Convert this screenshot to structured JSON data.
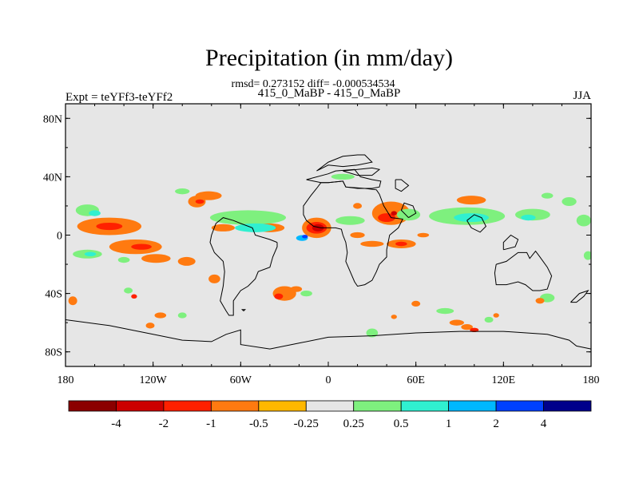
{
  "chart_data": {
    "type": "heatmap",
    "title": "Precipitation (in mm/day)",
    "subtitle": "rmsd= 0.273152 diff= -0.000534534",
    "case_label": "415_0_MaBP - 415_0_MaBP",
    "left_label": "Expt = teYFf3-teYFf2",
    "right_label": "JJA",
    "xlabel": "",
    "ylabel": "",
    "xlim": [
      -180,
      180
    ],
    "ylim": [
      -90,
      90
    ],
    "x_ticks": [
      {
        "value": -180,
        "label": "180"
      },
      {
        "value": -120,
        "label": "120W"
      },
      {
        "value": -60,
        "label": "60W"
      },
      {
        "value": 0,
        "label": "0"
      },
      {
        "value": 60,
        "label": "60E"
      },
      {
        "value": 120,
        "label": "120E"
      },
      {
        "value": 180,
        "label": "180"
      }
    ],
    "y_ticks": [
      {
        "value": 80,
        "label": "80N"
      },
      {
        "value": 40,
        "label": "40N"
      },
      {
        "value": 0,
        "label": "0"
      },
      {
        "value": -40,
        "label": "40S"
      },
      {
        "value": -80,
        "label": "80S"
      }
    ],
    "background_color": "#e6e6e6",
    "colorbar": {
      "levels": [
        "-4",
        "-2",
        "-1",
        "-0.5",
        "-0.25",
        "0.25",
        "0.5",
        "1",
        "2",
        "4"
      ],
      "colors": [
        "#8b0000",
        "#cc0000",
        "#ff2000",
        "#ff7a10",
        "#ffb800",
        "#e6e6e6",
        "#7ef07e",
        "#30f0d0",
        "#00b8ff",
        "#0040ff",
        "#00008b"
      ]
    },
    "features": [
      {
        "lon": -150,
        "lat": 6,
        "rx": 22,
        "ry": 6,
        "value": -0.5
      },
      {
        "lon": -150,
        "lat": 6,
        "rx": 9,
        "ry": 2.5,
        "value": -1
      },
      {
        "lon": -132,
        "lat": -8,
        "rx": 18,
        "ry": 5,
        "value": -0.5
      },
      {
        "lon": -128,
        "lat": -8,
        "rx": 7,
        "ry": 2,
        "value": -1
      },
      {
        "lon": -165,
        "lat": 17,
        "rx": 8,
        "ry": 4,
        "value": 0.5
      },
      {
        "lon": -160,
        "lat": 15,
        "rx": 4,
        "ry": 2,
        "value": 1
      },
      {
        "lon": -165,
        "lat": -13,
        "rx": 10,
        "ry": 3,
        "value": 0.5
      },
      {
        "lon": -163,
        "lat": -13,
        "rx": 4,
        "ry": 1.5,
        "value": 1
      },
      {
        "lon": -118,
        "lat": -16,
        "rx": 10,
        "ry": 3,
        "value": -0.5
      },
      {
        "lon": -97,
        "lat": -18,
        "rx": 6,
        "ry": 3,
        "value": -0.5
      },
      {
        "lon": -78,
        "lat": -30,
        "rx": 4,
        "ry": 3,
        "value": -0.5
      },
      {
        "lon": -90,
        "lat": 23,
        "rx": 6,
        "ry": 4,
        "value": -0.5
      },
      {
        "lon": -88,
        "lat": 23,
        "rx": 3,
        "ry": 1.5,
        "value": -1
      },
      {
        "lon": -82,
        "lat": 27,
        "rx": 9,
        "ry": 3,
        "value": -0.5
      },
      {
        "lon": -100,
        "lat": 30,
        "rx": 5,
        "ry": 2,
        "value": 0.5
      },
      {
        "lon": -70,
        "lat": 13,
        "rx": 5,
        "ry": 2,
        "value": 0.5
      },
      {
        "lon": -65,
        "lat": 12,
        "rx": 3,
        "ry": 1.5,
        "value": -0.5
      },
      {
        "lon": -55,
        "lat": 12,
        "rx": 26,
        "ry": 5,
        "value": 0.5
      },
      {
        "lon": -50,
        "lat": 5,
        "rx": 14,
        "ry": 3,
        "value": 1
      },
      {
        "lon": -72,
        "lat": 5,
        "rx": 8,
        "ry": 2.5,
        "value": -0.5
      },
      {
        "lon": -40,
        "lat": 5,
        "rx": 10,
        "ry": 3,
        "value": -0.5
      },
      {
        "lon": -8,
        "lat": 5,
        "rx": 10,
        "ry": 7,
        "value": -0.5
      },
      {
        "lon": -8,
        "lat": 5,
        "rx": 7,
        "ry": 4,
        "value": -1
      },
      {
        "lon": -7,
        "lat": 5,
        "rx": 4,
        "ry": 2.5,
        "value": -2
      },
      {
        "lon": -18,
        "lat": -2,
        "rx": 4,
        "ry": 2,
        "value": 2
      },
      {
        "lon": -16,
        "lat": -1,
        "rx": 2,
        "ry": 1.2,
        "value": 4
      },
      {
        "lon": -30,
        "lat": -40,
        "rx": 8,
        "ry": 5,
        "value": -0.5
      },
      {
        "lon": -34,
        "lat": -42,
        "rx": 3,
        "ry": 2,
        "value": -1
      },
      {
        "lon": -22,
        "lat": -37,
        "rx": 4,
        "ry": 2,
        "value": -0.5
      },
      {
        "lon": -15,
        "lat": -40,
        "rx": 4,
        "ry": 2,
        "value": 0.5
      },
      {
        "lon": 15,
        "lat": 10,
        "rx": 10,
        "ry": 3,
        "value": 0.5
      },
      {
        "lon": 10,
        "lat": 40,
        "rx": 8,
        "ry": 2,
        "value": 0.5
      },
      {
        "lon": 20,
        "lat": 20,
        "rx": 3,
        "ry": 2,
        "value": -0.5
      },
      {
        "lon": 30,
        "lat": -6,
        "rx": 8,
        "ry": 2,
        "value": -0.5
      },
      {
        "lon": 50,
        "lat": -6,
        "rx": 10,
        "ry": 3,
        "value": -0.5
      },
      {
        "lon": 50,
        "lat": -6,
        "rx": 4,
        "ry": 1.5,
        "value": -1
      },
      {
        "lon": 65,
        "lat": 0,
        "rx": 4,
        "ry": 1.5,
        "value": -0.5
      },
      {
        "lon": 20,
        "lat": 0,
        "rx": 5,
        "ry": 2,
        "value": -0.5
      },
      {
        "lon": 43,
        "lat": 15,
        "rx": 13,
        "ry": 8,
        "value": -0.5
      },
      {
        "lon": 40,
        "lat": 12,
        "rx": 6,
        "ry": 3,
        "value": -1
      },
      {
        "lon": 45,
        "lat": 15,
        "rx": 2,
        "ry": 1.5,
        "value": -2
      },
      {
        "lon": 55,
        "lat": 14,
        "rx": 8,
        "ry": 4,
        "value": 0.5
      },
      {
        "lon": 95,
        "lat": 13,
        "rx": 26,
        "ry": 6,
        "value": 0.5
      },
      {
        "lon": 98,
        "lat": 12,
        "rx": 12,
        "ry": 3,
        "value": 1
      },
      {
        "lon": 140,
        "lat": 14,
        "rx": 12,
        "ry": 4,
        "value": 0.5
      },
      {
        "lon": 137,
        "lat": 12,
        "rx": 5,
        "ry": 2,
        "value": 1
      },
      {
        "lon": 98,
        "lat": 24,
        "rx": 10,
        "ry": 3,
        "value": -0.5
      },
      {
        "lon": 150,
        "lat": 27,
        "rx": 4,
        "ry": 2,
        "value": 0.5
      },
      {
        "lon": 165,
        "lat": 23,
        "rx": 5,
        "ry": 3,
        "value": 0.5
      },
      {
        "lon": 175,
        "lat": 10,
        "rx": 5,
        "ry": 4,
        "value": 0.5
      },
      {
        "lon": 178,
        "lat": -14,
        "rx": 3,
        "ry": 3,
        "value": 0.5
      },
      {
        "lon": 150,
        "lat": -43,
        "rx": 5,
        "ry": 3,
        "value": 0.5
      },
      {
        "lon": 145,
        "lat": -45,
        "rx": 3,
        "ry": 2,
        "value": -0.5
      },
      {
        "lon": 80,
        "lat": -52,
        "rx": 6,
        "ry": 2,
        "value": 0.5
      },
      {
        "lon": 88,
        "lat": -60,
        "rx": 5,
        "ry": 2,
        "value": -0.5
      },
      {
        "lon": 95,
        "lat": -63,
        "rx": 4,
        "ry": 2,
        "value": -0.5
      },
      {
        "lon": 100,
        "lat": -65,
        "rx": 3,
        "ry": 1.5,
        "value": -1
      },
      {
        "lon": 110,
        "lat": -58,
        "rx": 3,
        "ry": 2,
        "value": 0.5
      },
      {
        "lon": 30,
        "lat": -67,
        "rx": 4,
        "ry": 3,
        "value": 0.5
      },
      {
        "lon": 45,
        "lat": -56,
        "rx": 2,
        "ry": 1.5,
        "value": -0.5
      },
      {
        "lon": 60,
        "lat": -47,
        "rx": 3,
        "ry": 2,
        "value": -0.5
      },
      {
        "lon": 115,
        "lat": -55,
        "rx": 2,
        "ry": 1.5,
        "value": -0.5
      },
      {
        "lon": -137,
        "lat": -38,
        "rx": 3,
        "ry": 2,
        "value": 0.5
      },
      {
        "lon": -133,
        "lat": -42,
        "rx": 2,
        "ry": 1.5,
        "value": -1
      },
      {
        "lon": -115,
        "lat": -55,
        "rx": 4,
        "ry": 2,
        "value": -0.5
      },
      {
        "lon": -122,
        "lat": -62,
        "rx": 3,
        "ry": 2,
        "value": -0.5
      },
      {
        "lon": -100,
        "lat": -55,
        "rx": 3,
        "ry": 2,
        "value": 0.5
      },
      {
        "lon": -175,
        "lat": -45,
        "rx": 3,
        "ry": 3,
        "value": -0.5
      },
      {
        "lon": -140,
        "lat": -17,
        "rx": 4,
        "ry": 2,
        "value": 0.5
      }
    ],
    "coastlines": [
      [
        [
          -15,
          38
        ],
        [
          0,
          42
        ],
        [
          5,
          44
        ],
        [
          18,
          45
        ],
        [
          22,
          40
        ],
        [
          30,
          38
        ],
        [
          36,
          37
        ],
        [
          35,
          33
        ],
        [
          30,
          32
        ],
        [
          25,
          32
        ],
        [
          20,
          32
        ],
        [
          12,
          33
        ],
        [
          10,
          37
        ],
        [
          0,
          36
        ],
        [
          -5,
          36
        ],
        [
          -15,
          38
        ]
      ],
      [
        [
          -5,
          36
        ],
        [
          -8,
          32
        ],
        [
          -12,
          27
        ],
        [
          -17,
          20
        ],
        [
          -17,
          14
        ],
        [
          -15,
          10
        ],
        [
          -10,
          6
        ],
        [
          -5,
          5
        ],
        [
          5,
          5
        ],
        [
          9,
          4
        ],
        [
          10,
          0
        ],
        [
          12,
          -5
        ],
        [
          13,
          -12
        ],
        [
          12,
          -18
        ],
        [
          15,
          -25
        ],
        [
          18,
          -32
        ],
        [
          20,
          -35
        ],
        [
          25,
          -34
        ],
        [
          30,
          -31
        ],
        [
          33,
          -25
        ],
        [
          35,
          -20
        ],
        [
          40,
          -15
        ],
        [
          40,
          -10
        ],
        [
          42,
          0
        ],
        [
          48,
          5
        ],
        [
          51,
          11
        ],
        [
          43,
          12
        ],
        [
          38,
          20
        ],
        [
          35,
          28
        ],
        [
          33,
          31
        ],
        [
          25,
          32
        ],
        [
          12,
          33
        ],
        [
          10,
          37
        ],
        [
          0,
          36
        ],
        [
          -5,
          36
        ]
      ],
      [
        [
          -35,
          -5
        ],
        [
          -40,
          -3
        ],
        [
          -50,
          0
        ],
        [
          -52,
          5
        ],
        [
          -60,
          8
        ],
        [
          -65,
          10
        ],
        [
          -72,
          12
        ],
        [
          -77,
          8
        ],
        [
          -80,
          0
        ],
        [
          -81,
          -5
        ],
        [
          -78,
          -12
        ],
        [
          -72,
          -18
        ],
        [
          -71,
          -25
        ],
        [
          -72,
          -35
        ],
        [
          -74,
          -45
        ],
        [
          -70,
          -52
        ],
        [
          -68,
          -55
        ],
        [
          -65,
          -55
        ],
        [
          -65,
          -45
        ],
        [
          -60,
          -38
        ],
        [
          -55,
          -35
        ],
        [
          -50,
          -30
        ],
        [
          -48,
          -25
        ],
        [
          -40,
          -22
        ],
        [
          -38,
          -15
        ],
        [
          -35,
          -8
        ],
        [
          -35,
          -5
        ]
      ],
      [
        [
          115,
          -20
        ],
        [
          122,
          -18
        ],
        [
          130,
          -12
        ],
        [
          136,
          -12
        ],
        [
          138,
          -16
        ],
        [
          142,
          -11
        ],
        [
          145,
          -15
        ],
        [
          150,
          -22
        ],
        [
          153,
          -28
        ],
        [
          150,
          -37
        ],
        [
          145,
          -38
        ],
        [
          140,
          -38
        ],
        [
          135,
          -34
        ],
        [
          130,
          -32
        ],
        [
          122,
          -34
        ],
        [
          115,
          -34
        ],
        [
          114,
          -26
        ],
        [
          115,
          -20
        ]
      ],
      [
        [
          -180,
          -58
        ],
        [
          -150,
          -62
        ],
        [
          -120,
          -68
        ],
        [
          -100,
          -72
        ],
        [
          -80,
          -73
        ],
        [
          -70,
          -68
        ],
        [
          -60,
          -65
        ],
        [
          -60,
          -75
        ],
        [
          -40,
          -78
        ],
        [
          -20,
          -74
        ],
        [
          0,
          -70
        ],
        [
          30,
          -69
        ],
        [
          60,
          -67
        ],
        [
          90,
          -66
        ],
        [
          120,
          -66
        ],
        [
          150,
          -68
        ],
        [
          165,
          -72
        ],
        [
          170,
          -76
        ],
        [
          180,
          -78
        ]
      ],
      [
        [
          -180,
          -90
        ],
        [
          180,
          -90
        ]
      ],
      [
        [
          10,
          44
        ],
        [
          20,
          45
        ],
        [
          30,
          46
        ],
        [
          35,
          45
        ],
        [
          30,
          41
        ],
        [
          20,
          41
        ],
        [
          10,
          44
        ]
      ],
      [
        [
          -8,
          44
        ],
        [
          0,
          50
        ],
        [
          10,
          54
        ],
        [
          20,
          55
        ],
        [
          25,
          55
        ],
        [
          30,
          50
        ],
        [
          20,
          48
        ],
        [
          10,
          47
        ],
        [
          0,
          48
        ],
        [
          -8,
          44
        ]
      ],
      [
        [
          46,
          38
        ],
        [
          50,
          38
        ],
        [
          55,
          34
        ],
        [
          50,
          30
        ],
        [
          46,
          32
        ],
        [
          46,
          38
        ]
      ],
      [
        [
          55,
          12
        ],
        [
          60,
          15
        ],
        [
          58,
          20
        ],
        [
          52,
          22
        ],
        [
          50,
          17
        ],
        [
          55,
          12
        ]
      ],
      [
        [
          95,
          10
        ],
        [
          100,
          14
        ],
        [
          105,
          12
        ],
        [
          108,
          6
        ],
        [
          104,
          2
        ],
        [
          98,
          5
        ],
        [
          95,
          10
        ]
      ],
      [
        [
          120,
          -10
        ],
        [
          128,
          -8
        ],
        [
          130,
          -3
        ],
        [
          125,
          0
        ],
        [
          120,
          -5
        ],
        [
          120,
          -10
        ]
      ],
      [
        [
          166,
          -46
        ],
        [
          172,
          -40
        ],
        [
          178,
          -38
        ],
        [
          175,
          -42
        ],
        [
          170,
          -46
        ],
        [
          166,
          -46
        ]
      ],
      [
        [
          -58,
          -52
        ],
        [
          -57,
          -51
        ],
        [
          -59,
          -51
        ],
        [
          -58,
          -52
        ]
      ]
    ]
  }
}
